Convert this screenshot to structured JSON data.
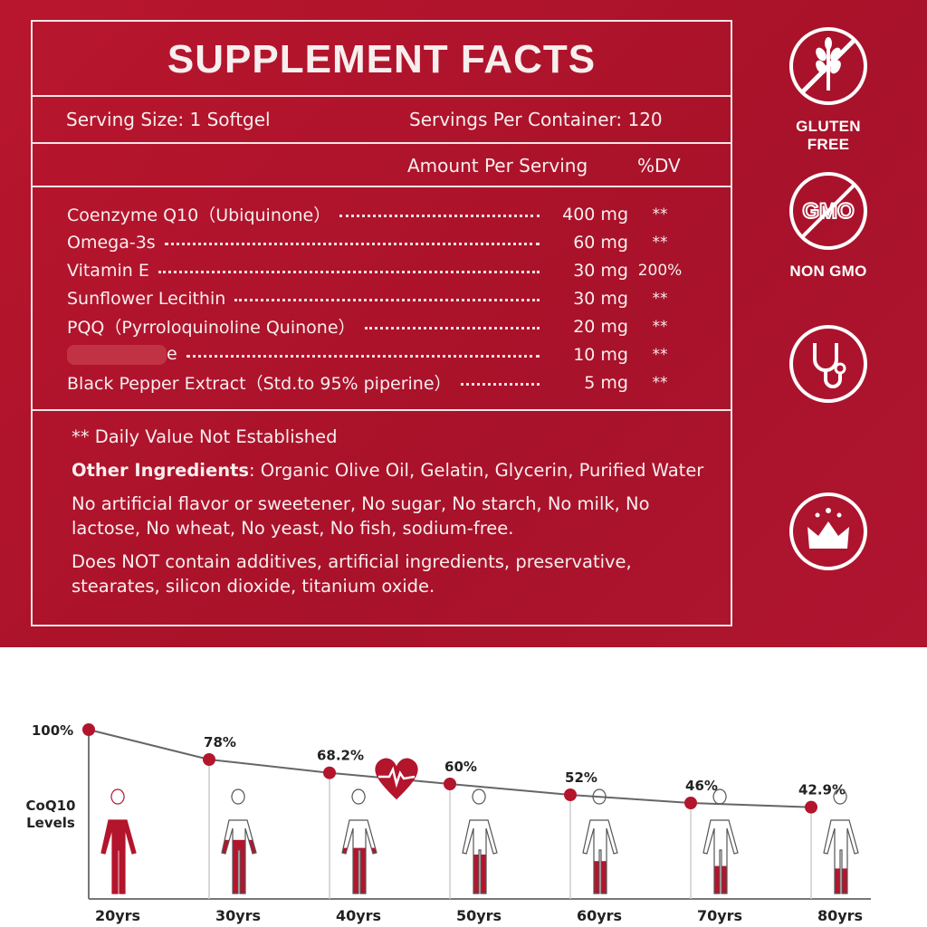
{
  "label": {
    "title": "SUPPLEMENT FACTS",
    "serving_size": "Serving Size: 1 Softgel",
    "servings_per_container": "Servings Per Container: 120",
    "amount_header": "Amount Per Serving",
    "dv_header": "%DV",
    "ingredients": [
      {
        "name": "Coenzyme Q10（Ubiquinone）",
        "amount": "400 mg",
        "dv": "**"
      },
      {
        "name": "Omega-3s",
        "amount": "60 mg",
        "dv": "**"
      },
      {
        "name": "Vitamin E",
        "amount": "30 mg",
        "dv": "200%"
      },
      {
        "name": "Sunflower Lecithin",
        "amount": "30 mg",
        "dv": "**"
      },
      {
        "name": "PQQ（Pyrroloquinoline Quinone）",
        "amount": "20 mg",
        "dv": "**"
      },
      {
        "name": "e",
        "amount": "10 mg",
        "dv": "**"
      },
      {
        "name": "Black Pepper Extract（Std.to 95% piperine）",
        "amount": "5 mg",
        "dv": "**"
      }
    ],
    "dv_note": "** Daily Value Not Established",
    "other_label": "Other Ingredients",
    "other_text": ": Organic Olive Oil, Gelatin, Glycerin, Purified Water",
    "free_from": "No artificial flavor or sweetener, No sugar, No starch, No milk, No lactose, No wheat, No yeast, No fish, sodium-free.",
    "no_additives": "Does NOT contain additives, artificial ingredients, preservative, stearates, silicon dioxide, titanium oxide."
  },
  "badges": [
    {
      "icon": "wheat-crossed-icon",
      "caption": "GLUTEN FREE"
    },
    {
      "icon": "gmo-crossed-icon",
      "text": "GMO",
      "caption": "NON GMO"
    },
    {
      "icon": "stethoscope-icon"
    },
    {
      "icon": "crown-icon"
    }
  ],
  "colors": {
    "brand_red": "#b3152d",
    "dot_red": "#b3152d"
  },
  "chart_data": {
    "type": "line",
    "ylabel": "CoQ10 Levels",
    "x": [
      "20yrs",
      "30yrs",
      "40yrs",
      "50yrs",
      "60yrs",
      "70yrs",
      "80yrs"
    ],
    "values": [
      100,
      78,
      68.2,
      60,
      52,
      46,
      42.9
    ],
    "data_labels": [
      "100%",
      "78%",
      "68.2%",
      "60%",
      "52%",
      "46%",
      "42.9%"
    ],
    "ylim": [
      0,
      100
    ]
  }
}
